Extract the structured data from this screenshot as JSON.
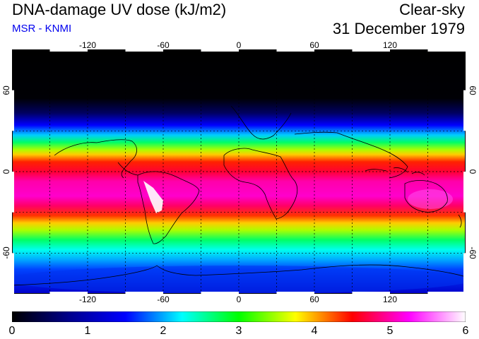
{
  "header": {
    "title": "DNA-damage UV dose (kJ/m2)",
    "source": "MSR - KNMI",
    "condition": "Clear-sky",
    "date": "31 December 1979"
  },
  "map": {
    "lon_ticks": [
      "-120",
      "-60",
      "0",
      "60",
      "120"
    ],
    "lat_ticks_left": [
      "60",
      "0",
      "-60"
    ],
    "lat_ticks_right": [
      "60",
      "0",
      "-60"
    ],
    "projection": "equirectangular",
    "lon_range": [
      -180,
      180
    ],
    "lat_range": [
      -90,
      90
    ],
    "grid_lon_step": 30,
    "grid_lat_step": 30
  },
  "colorbar": {
    "labels": [
      "0",
      "1",
      "2",
      "3",
      "4",
      "5",
      "6"
    ],
    "min": 0,
    "max": 6,
    "stops": [
      "#000000",
      "#00008b",
      "#0000ff",
      "#00ffff",
      "#00ff00",
      "#ffff00",
      "#ff0000",
      "#ff00ff",
      "#ffffff"
    ]
  },
  "colors": {
    "grid": "#000000",
    "coast": "#000000",
    "title": "#000000",
    "source": "#0000ee"
  }
}
